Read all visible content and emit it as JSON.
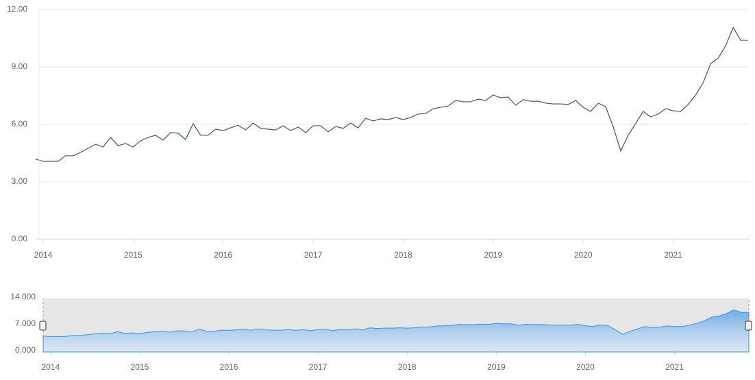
{
  "chart_data": {
    "type": "line",
    "color": "#3d5a7a",
    "x": [
      2013.917,
      2014.0,
      2014.083,
      2014.167,
      2014.25,
      2014.333,
      2014.417,
      2014.5,
      2014.583,
      2014.667,
      2014.75,
      2014.833,
      2014.917,
      2015.0,
      2015.083,
      2015.167,
      2015.25,
      2015.333,
      2015.417,
      2015.5,
      2015.583,
      2015.667,
      2015.75,
      2015.833,
      2015.917,
      2016.0,
      2016.083,
      2016.167,
      2016.25,
      2016.333,
      2016.417,
      2016.5,
      2016.583,
      2016.667,
      2016.75,
      2016.833,
      2016.917,
      2017.0,
      2017.083,
      2017.167,
      2017.25,
      2017.333,
      2017.417,
      2017.5,
      2017.583,
      2017.667,
      2017.75,
      2017.833,
      2017.917,
      2018.0,
      2018.083,
      2018.167,
      2018.25,
      2018.333,
      2018.417,
      2018.5,
      2018.583,
      2018.667,
      2018.75,
      2018.833,
      2018.917,
      2019.0,
      2019.083,
      2019.167,
      2019.25,
      2019.333,
      2019.417,
      2019.5,
      2019.583,
      2019.667,
      2019.75,
      2019.833,
      2019.917,
      2020.0,
      2020.083,
      2020.167,
      2020.25,
      2020.333,
      2020.417,
      2020.5,
      2020.583,
      2020.667,
      2020.75,
      2020.833,
      2020.917,
      2021.0,
      2021.083,
      2021.167,
      2021.25,
      2021.333,
      2021.417,
      2021.5,
      2021.583,
      2021.667,
      2021.75,
      2021.833
    ],
    "values": [
      4.18,
      4.07,
      4.07,
      4.07,
      4.36,
      4.36,
      4.54,
      4.75,
      4.96,
      4.82,
      5.32,
      4.89,
      5.0,
      4.82,
      5.14,
      5.32,
      5.43,
      5.18,
      5.57,
      5.54,
      5.21,
      6.04,
      5.43,
      5.43,
      5.75,
      5.68,
      5.82,
      5.96,
      5.71,
      6.07,
      5.79,
      5.75,
      5.71,
      5.93,
      5.68,
      5.86,
      5.57,
      5.93,
      5.93,
      5.61,
      5.89,
      5.79,
      6.07,
      5.82,
      6.32,
      6.18,
      6.29,
      6.25,
      6.36,
      6.25,
      6.36,
      6.54,
      6.57,
      6.82,
      6.89,
      6.96,
      7.25,
      7.18,
      7.18,
      7.32,
      7.25,
      7.54,
      7.39,
      7.43,
      7.0,
      7.29,
      7.21,
      7.21,
      7.11,
      7.07,
      7.07,
      7.04,
      7.25,
      6.89,
      6.68,
      7.11,
      6.93,
      5.89,
      4.61,
      5.43,
      6.04,
      6.68,
      6.39,
      6.54,
      6.82,
      6.71,
      6.68,
      7.04,
      7.54,
      8.18,
      9.18,
      9.46,
      10.11,
      11.07,
      10.39,
      10.39
    ],
    "xlim": [
      2013.917,
      2021.833
    ],
    "xticks": [
      2014,
      2015,
      2016,
      2017,
      2018,
      2019,
      2020,
      2021
    ],
    "ylim": [
      0,
      12
    ],
    "yticks": [
      {
        "value": 0,
        "label": "0.00"
      },
      {
        "value": 3,
        "label": "3.00"
      },
      {
        "value": 6,
        "label": "6.00"
      },
      {
        "value": 9,
        "label": "9.00"
      },
      {
        "value": 12,
        "label": "12.00"
      }
    ],
    "grid": true,
    "navigator": {
      "type": "area",
      "color": "#3d8fd9",
      "ylim": [
        0,
        14
      ],
      "yticks": [
        {
          "value": 0,
          "label": "0.000"
        },
        {
          "value": 7,
          "label": "7.000"
        },
        {
          "value": 14,
          "label": "14.000"
        }
      ]
    }
  }
}
